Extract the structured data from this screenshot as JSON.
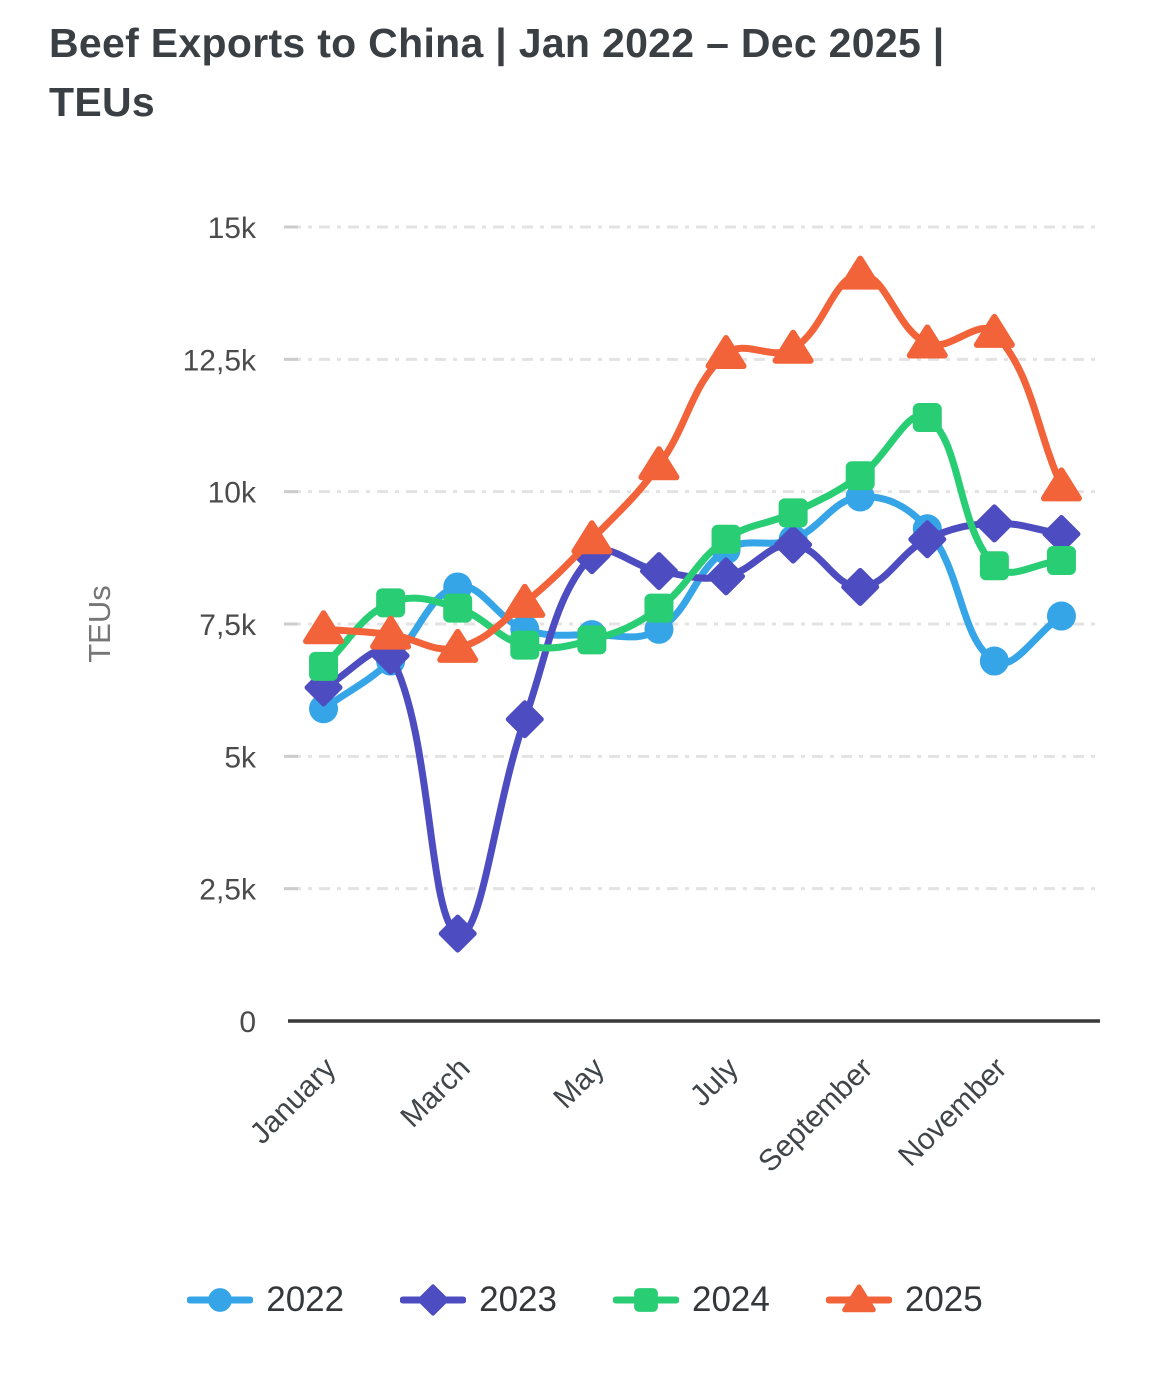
{
  "title": "Beef Exports to China | Jan 2022 – Dec 2025 | TEUs",
  "colors": {
    "background": "#ffffff",
    "title_text": "#3a3f44",
    "tick_text": "#4b4b4b",
    "x_tick_text": "#40454a",
    "axis_title_text": "#767676",
    "gridline": "#e3e3e3",
    "tick_mark": "#cccccc",
    "axis_line": "#3a3a3a",
    "legend_text": "#34383b"
  },
  "chart_data": {
    "type": "line",
    "title": "Beef Exports to China | Jan 2022 – Dec 2025 | TEUs",
    "xlabel": "",
    "ylabel": "TEUs",
    "ylim": [
      0,
      15000
    ],
    "grid": "horizontal-dashed",
    "legend_position": "bottom",
    "curve": "smooth-spline",
    "categories": [
      "January",
      "February",
      "March",
      "April",
      "May",
      "June",
      "July",
      "August",
      "September",
      "October",
      "November",
      "December"
    ],
    "x_tick_labels_shown": [
      "January",
      "March",
      "May",
      "July",
      "September",
      "November"
    ],
    "x_tick_shown_indices": [
      0,
      2,
      4,
      6,
      8,
      10
    ],
    "y_tick_values": [
      0,
      2500,
      5000,
      7500,
      10000,
      12500,
      15000
    ],
    "y_tick_labels": [
      "0",
      "2,5k",
      "5k",
      "7,5k",
      "10k",
      "12,5k",
      "15k"
    ],
    "series": [
      {
        "name": "2022",
        "color": "#36a5e8",
        "marker": "circle",
        "values": [
          5900,
          6800,
          8200,
          7400,
          7300,
          7400,
          8900,
          9100,
          9900,
          9300,
          6800,
          7650
        ]
      },
      {
        "name": "2023",
        "color": "#4d4cc0",
        "marker": "diamond",
        "values": [
          6300,
          6900,
          1650,
          5700,
          8800,
          8500,
          8400,
          9000,
          8200,
          9100,
          9400,
          9200
        ]
      },
      {
        "name": "2024",
        "color": "#29ce74",
        "marker": "square",
        "values": [
          6700,
          7900,
          7800,
          7100,
          7200,
          7800,
          9100,
          9600,
          10300,
          11400,
          8600,
          8700
        ]
      },
      {
        "name": "2025",
        "color": "#f2633a",
        "marker": "triangle",
        "values": [
          7400,
          7300,
          7050,
          7900,
          9100,
          10500,
          12600,
          12700,
          14100,
          12800,
          13000,
          10100
        ]
      }
    ]
  }
}
